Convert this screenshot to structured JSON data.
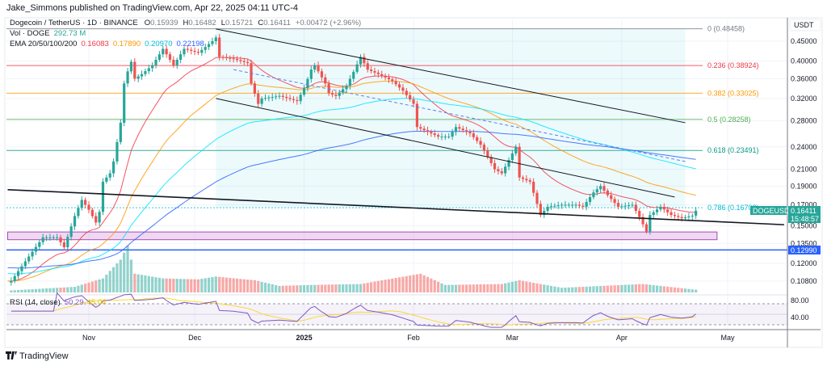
{
  "header": {
    "published": "Jake_Simmons published on TradingView.com, Apr 22, 2025 04:11 UTC-4"
  },
  "legend": {
    "symbol": "Dogecoin / TetherUS · 1D · BINANCE",
    "o_label": "O",
    "o": "0.15939",
    "h_label": "H",
    "h": "0.16482",
    "l_label": "L",
    "l": "0.15721",
    "c_label": "C",
    "c": "0.16411",
    "change": "+0.00472 (+2.96%)",
    "vol_label": "Vol · DOGE",
    "vol": "292.73 M",
    "ema_label": "EMA 20/50/100/200",
    "ema20": "0.16083",
    "ema50": "0.17890",
    "ema100": "0.20970",
    "ema200": "0.22198",
    "rsi_label": "RSI (14, close)",
    "rsi": "50.29",
    "rsi_ma": "45.04"
  },
  "axis": {
    "currency": "USDT",
    "price_ticks": [
      "0.45000",
      "0.40000",
      "0.36000",
      "0.32000",
      "0.28000",
      "0.24000",
      "0.21000",
      "0.19000",
      "0.17000",
      "0.15000",
      "0.13500",
      "0.12000",
      "0.10800"
    ],
    "rsi_ticks": [
      "80.00",
      "40.00"
    ],
    "time_ticks": [
      {
        "label": "Nov",
        "date": "2024-11-01"
      },
      {
        "label": "Dec",
        "date": "2024-12-01"
      },
      {
        "label": "2025",
        "date": "2025-01-01"
      },
      {
        "label": "Feb",
        "date": "2025-02-01"
      },
      {
        "label": "Mar",
        "date": "2025-03-01"
      },
      {
        "label": "Apr",
        "date": "2025-04-01"
      },
      {
        "label": "May",
        "date": "2025-05-01"
      }
    ]
  },
  "tags": {
    "symbol": "DOGEUSDT",
    "price": "0.16411",
    "countdown": "15:48:57",
    "hline": "0.12990"
  },
  "brand": "TradingView",
  "colors": {
    "up": "#26a69a",
    "down": "#ef5350",
    "ema20": "#f23645",
    "ema50": "#ff9800",
    "ema100": "#00e5ff",
    "ema200": "#2962ff",
    "rsi": "#7e57c2",
    "rsi_ma": "#fdd835"
  },
  "chart_data": {
    "type": "candlestick",
    "title": "Dogecoin / TetherUS · 1D · BINANCE",
    "y_scale": "log",
    "ylim": [
      0.1,
      0.5
    ],
    "key_closes": [
      [
        "2024-10-09",
        0.107
      ],
      [
        "2024-10-10",
        0.108
      ],
      [
        "2024-10-15",
        0.125
      ],
      [
        "2024-10-19",
        0.14
      ],
      [
        "2024-10-23",
        0.14
      ],
      [
        "2024-10-25",
        0.132
      ],
      [
        "2024-10-28",
        0.159
      ],
      [
        "2024-10-30",
        0.175
      ],
      [
        "2024-11-01",
        0.165
      ],
      [
        "2024-11-03",
        0.153
      ],
      [
        "2024-11-04",
        0.163
      ],
      [
        "2024-11-05",
        0.195
      ],
      [
        "2024-11-07",
        0.205
      ],
      [
        "2024-11-08",
        0.22
      ],
      [
        "2024-11-10",
        0.277
      ],
      [
        "2024-11-11",
        0.35
      ],
      [
        "2024-11-12",
        0.376
      ],
      [
        "2024-11-13",
        0.398
      ],
      [
        "2024-11-14",
        0.36
      ],
      [
        "2024-11-16",
        0.37
      ],
      [
        "2024-11-19",
        0.39
      ],
      [
        "2024-11-22",
        0.43
      ],
      [
        "2024-11-25",
        0.39
      ],
      [
        "2024-11-28",
        0.43
      ],
      [
        "2024-12-02",
        0.42
      ],
      [
        "2024-12-06",
        0.45
      ],
      [
        "2024-12-07",
        0.46
      ],
      [
        "2024-12-08",
        0.41
      ],
      [
        "2024-12-12",
        0.405
      ],
      [
        "2024-12-16",
        0.395
      ],
      [
        "2024-12-17",
        0.35
      ],
      [
        "2024-12-19",
        0.31
      ],
      [
        "2024-12-20",
        0.32
      ],
      [
        "2024-12-25",
        0.325
      ],
      [
        "2024-12-30",
        0.315
      ],
      [
        "2025-01-01",
        0.34
      ],
      [
        "2025-01-03",
        0.38
      ],
      [
        "2025-01-04",
        0.39
      ],
      [
        "2025-01-07",
        0.35
      ],
      [
        "2025-01-08",
        0.33
      ],
      [
        "2025-01-10",
        0.325
      ],
      [
        "2025-01-13",
        0.345
      ],
      [
        "2025-01-15",
        0.375
      ],
      [
        "2025-01-17",
        0.41
      ],
      [
        "2025-01-19",
        0.38
      ],
      [
        "2025-01-22",
        0.37
      ],
      [
        "2025-01-26",
        0.355
      ],
      [
        "2025-01-29",
        0.335
      ],
      [
        "2025-02-01",
        0.31
      ],
      [
        "2025-02-02",
        0.27
      ],
      [
        "2025-02-04",
        0.265
      ],
      [
        "2025-02-08",
        0.255
      ],
      [
        "2025-02-11",
        0.255
      ],
      [
        "2025-02-13",
        0.27
      ],
      [
        "2025-02-17",
        0.26
      ],
      [
        "2025-02-20",
        0.243
      ],
      [
        "2025-02-24",
        0.21
      ],
      [
        "2025-02-26",
        0.205
      ],
      [
        "2025-03-02",
        0.24
      ],
      [
        "2025-03-03",
        0.2
      ],
      [
        "2025-03-06",
        0.195
      ],
      [
        "2025-03-09",
        0.16
      ],
      [
        "2025-03-11",
        0.168
      ],
      [
        "2025-03-15",
        0.17
      ],
      [
        "2025-03-19",
        0.17
      ],
      [
        "2025-03-21",
        0.168
      ],
      [
        "2025-03-24",
        0.183
      ],
      [
        "2025-03-26",
        0.19
      ],
      [
        "2025-03-28",
        0.18
      ],
      [
        "2025-03-31",
        0.168
      ],
      [
        "2025-04-04",
        0.17
      ],
      [
        "2025-04-06",
        0.158
      ],
      [
        "2025-04-08",
        0.145
      ],
      [
        "2025-04-09",
        0.16
      ],
      [
        "2025-04-12",
        0.168
      ],
      [
        "2025-04-15",
        0.16
      ],
      [
        "2025-04-18",
        0.157
      ],
      [
        "2025-04-21",
        0.15939
      ],
      [
        "2025-04-22",
        0.16411
      ]
    ],
    "key_volumes_millions": [
      [
        "2024-10-09",
        200
      ],
      [
        "2024-10-28",
        600
      ],
      [
        "2024-11-05",
        1500
      ],
      [
        "2024-11-10",
        3500
      ],
      [
        "2024-11-12",
        5000
      ],
      [
        "2024-11-14",
        2000
      ],
      [
        "2024-11-22",
        1500
      ],
      [
        "2024-12-02",
        1400
      ],
      [
        "2024-12-07",
        1700
      ],
      [
        "2024-12-18",
        1300
      ],
      [
        "2024-12-25",
        700
      ],
      [
        "2025-01-03",
        800
      ],
      [
        "2025-01-17",
        900
      ],
      [
        "2025-02-03",
        2000
      ],
      [
        "2025-02-10",
        800
      ],
      [
        "2025-02-26",
        900
      ],
      [
        "2025-03-03",
        1300
      ],
      [
        "2025-03-15",
        500
      ],
      [
        "2025-04-07",
        900
      ],
      [
        "2025-04-22",
        292.73
      ]
    ],
    "ema_seeds": {
      "ema20": 0.108,
      "ema50": 0.108,
      "ema100": 0.113,
      "ema200": 0.117
    },
    "fib_levels": [
      {
        "label": "0 (0.48458)",
        "price": 0.48458,
        "color": "#787b86"
      },
      {
        "label": "0.236 (0.38924)",
        "price": 0.38924,
        "color": "#f23645"
      },
      {
        "label": "0.382 (0.33025)",
        "price": 0.33025,
        "color": "#ff9800"
      },
      {
        "label": "0.5 (0.28258)",
        "price": 0.28258,
        "color": "#4caf50"
      },
      {
        "label": "0.618 (0.23491)",
        "price": 0.23491,
        "color": "#089981"
      },
      {
        "label": "0.786 (0.16703)",
        "price": 0.16703,
        "color": "#00bcd4"
      }
    ],
    "fib_zone": {
      "from": "2024-12-07",
      "to": "2025-04-19",
      "top": 0.48458,
      "bottom": 0.16703
    },
    "trendlines": [
      {
        "name": "support-trendline",
        "from": [
          "2024-10-09",
          0.186
        ],
        "to": [
          "2025-05-17",
          0.151
        ],
        "color": "#131722",
        "dash": false
      },
      {
        "name": "channel-upper",
        "from": [
          "2024-12-07",
          0.484
        ],
        "to": [
          "2025-04-19",
          0.277
        ],
        "color": "#131722",
        "dash": false
      },
      {
        "name": "channel-lower",
        "from": [
          "2024-12-07",
          0.32
        ],
        "to": [
          "2025-04-16",
          0.178
        ],
        "color": "#131722",
        "dash": false
      },
      {
        "name": "channel-mid-dashed",
        "from": [
          "2024-12-12",
          0.38
        ],
        "to": [
          "2025-04-19",
          0.22
        ],
        "color": "#5b7ff0",
        "dash": true
      }
    ],
    "support_zone": {
      "from": "2024-10-09",
      "to": "2025-04-28",
      "top": 0.1446,
      "bottom": 0.1381
    },
    "horizontal_line": {
      "price": 0.1299,
      "color": "#2962ff"
    },
    "rsi_levels": [
      70,
      30
    ]
  }
}
